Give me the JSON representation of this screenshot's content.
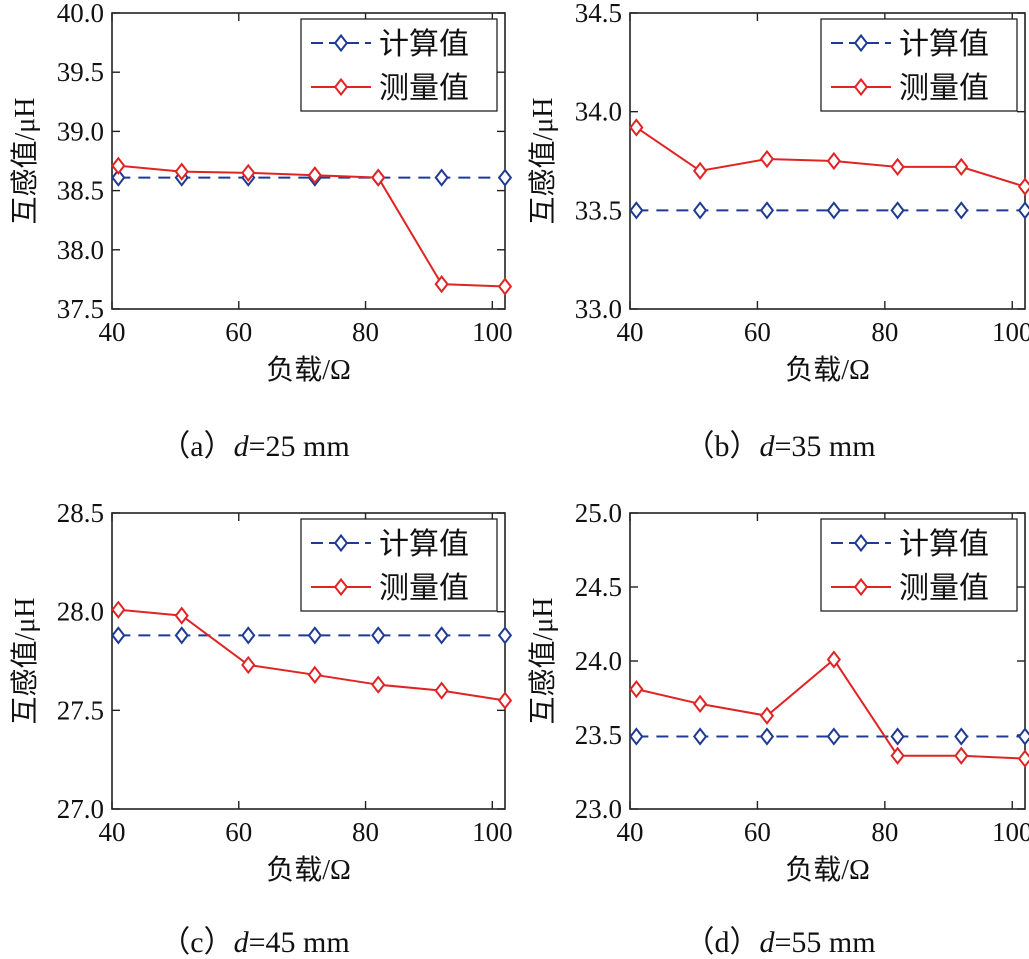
{
  "colors": {
    "calc": "#1f3a93",
    "meas": "#e02424",
    "axis": "#222222"
  },
  "chart_data": [
    {
      "type": "line",
      "caption_prefix": "（a）",
      "caption_var": "d",
      "caption_value": "=25 mm",
      "xlabel": "负载/Ω",
      "ylabel": "互感值/μH",
      "xlim": [
        40,
        102
      ],
      "xticks": [
        "40",
        "60",
        "80",
        "100"
      ],
      "ylim": [
        37.5,
        40.0
      ],
      "yticks": [
        "37.5",
        "38.0",
        "38.5",
        "39.0",
        "39.5",
        "40.0"
      ],
      "x": [
        41,
        51,
        61.5,
        72,
        82,
        92,
        102
      ],
      "series": [
        {
          "name": "计算值",
          "style": "dashed",
          "values": [
            38.61,
            38.61,
            38.61,
            38.61,
            38.61,
            38.61,
            38.61
          ]
        },
        {
          "name": "测量值",
          "style": "solid",
          "values": [
            38.71,
            38.66,
            38.65,
            38.63,
            38.61,
            37.71,
            37.69
          ]
        }
      ]
    },
    {
      "type": "line",
      "caption_prefix": "（b）",
      "caption_var": "d",
      "caption_value": "=35 mm",
      "xlabel": "负载/Ω",
      "ylabel": "互感值/μH",
      "xlim": [
        40,
        102
      ],
      "xticks": [
        "40",
        "60",
        "80",
        "100"
      ],
      "ylim": [
        33.0,
        34.5
      ],
      "yticks": [
        "33.0",
        "33.5",
        "34.0",
        "34.5"
      ],
      "x": [
        41,
        51,
        61.5,
        72,
        82,
        92,
        102
      ],
      "series": [
        {
          "name": "计算值",
          "style": "dashed",
          "values": [
            33.5,
            33.5,
            33.5,
            33.5,
            33.5,
            33.5,
            33.5
          ]
        },
        {
          "name": "测量值",
          "style": "solid",
          "values": [
            33.92,
            33.7,
            33.76,
            33.75,
            33.72,
            33.72,
            33.62
          ]
        }
      ]
    },
    {
      "type": "line",
      "caption_prefix": "（c）",
      "caption_var": "d",
      "caption_value": "=45 mm",
      "xlabel": "负载/Ω",
      "ylabel": "互感值/μH",
      "xlim": [
        40,
        102
      ],
      "xticks": [
        "40",
        "60",
        "80",
        "100"
      ],
      "ylim": [
        27.0,
        28.5
      ],
      "yticks": [
        "27.0",
        "27.5",
        "28.0",
        "28.5"
      ],
      "x": [
        41,
        51,
        61.5,
        72,
        82,
        92,
        102
      ],
      "series": [
        {
          "name": "计算值",
          "style": "dashed",
          "values": [
            27.88,
            27.88,
            27.88,
            27.88,
            27.88,
            27.88,
            27.88
          ]
        },
        {
          "name": "测量值",
          "style": "solid",
          "values": [
            28.01,
            27.98,
            27.73,
            27.68,
            27.63,
            27.6,
            27.55
          ]
        }
      ]
    },
    {
      "type": "line",
      "caption_prefix": "（d）",
      "caption_var": "d",
      "caption_value": "=55 mm",
      "xlabel": "负载/Ω",
      "ylabel": "互感值/μH",
      "xlim": [
        40,
        102
      ],
      "xticks": [
        "40",
        "60",
        "80",
        "100"
      ],
      "ylim": [
        23.0,
        25.0
      ],
      "yticks": [
        "23.0",
        "23.5",
        "24.0",
        "24.5",
        "25.0"
      ],
      "x": [
        41,
        51,
        61.5,
        72,
        82,
        92,
        102
      ],
      "series": [
        {
          "name": "计算值",
          "style": "dashed",
          "values": [
            23.49,
            23.49,
            23.49,
            23.49,
            23.49,
            23.49,
            23.49
          ]
        },
        {
          "name": "测量值",
          "style": "solid",
          "values": [
            23.81,
            23.71,
            23.63,
            24.01,
            23.36,
            23.36,
            23.34
          ]
        }
      ]
    }
  ]
}
